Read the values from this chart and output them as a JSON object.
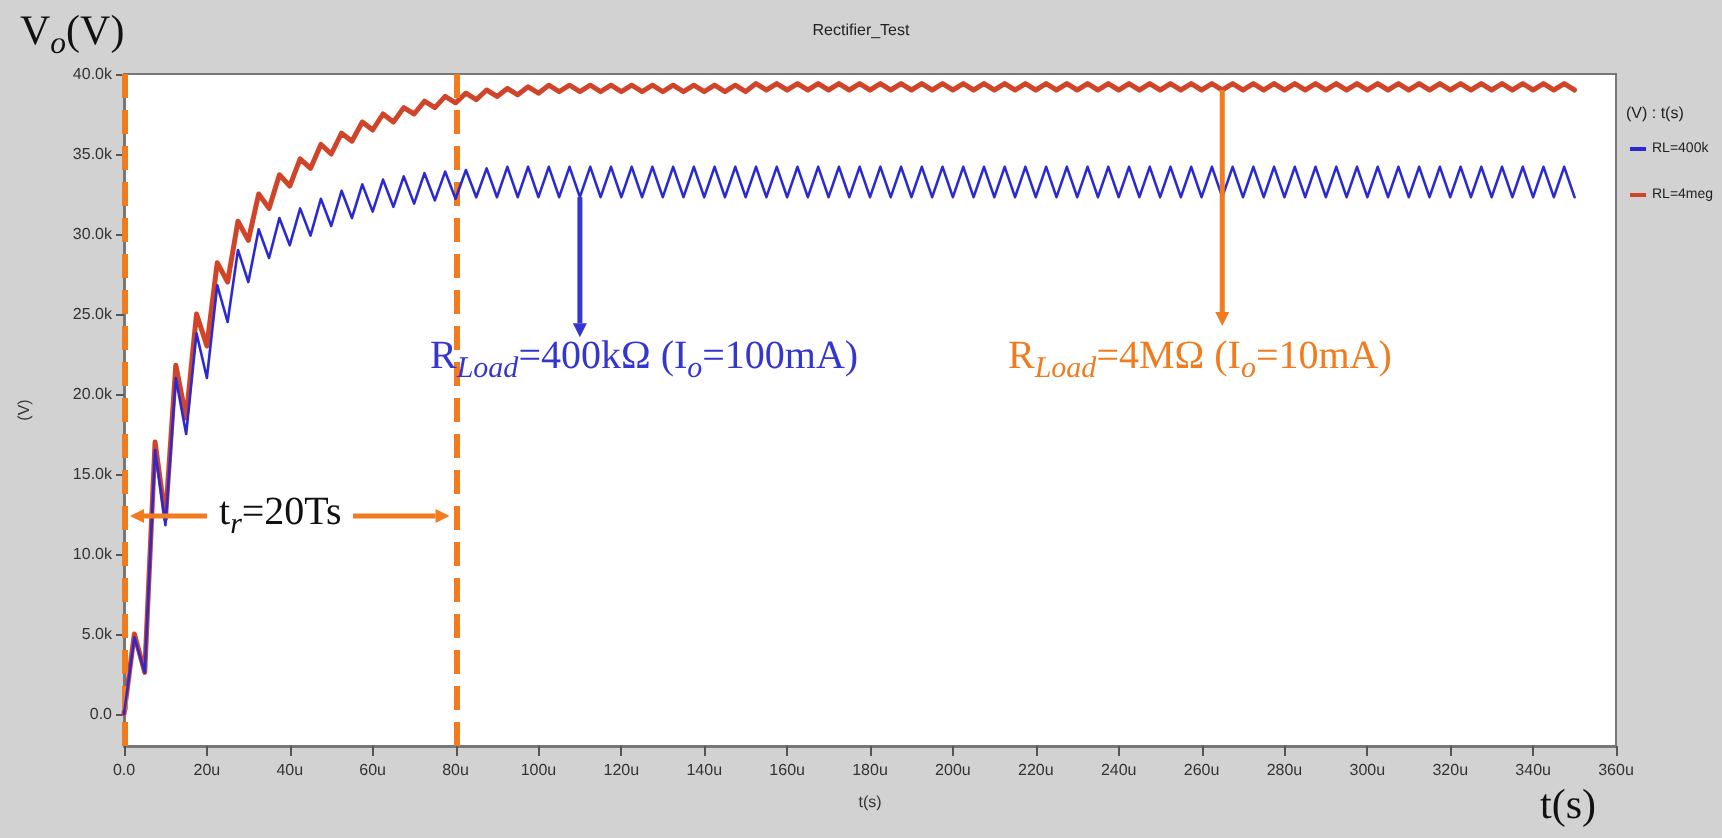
{
  "chart_data": {
    "type": "line",
    "title": "Rectifier_Test",
    "xlabel": "t(s)",
    "ylabel": "(V)",
    "legend_title": "(V) : t(s)",
    "legend": "right",
    "grid": false,
    "marker": "none",
    "line_style": "solid",
    "xlim": [
      0,
      360
    ],
    "ylim": [
      -2000,
      40000
    ],
    "xticks": [
      {
        "value": 0,
        "label": "0.0"
      },
      {
        "value": 20,
        "label": "20u"
      },
      {
        "value": 40,
        "label": "40u"
      },
      {
        "value": 60,
        "label": "60u"
      },
      {
        "value": 80,
        "label": "80u"
      },
      {
        "value": 100,
        "label": "100u"
      },
      {
        "value": 120,
        "label": "120u"
      },
      {
        "value": 140,
        "label": "140u"
      },
      {
        "value": 160,
        "label": "160u"
      },
      {
        "value": 180,
        "label": "180u"
      },
      {
        "value": 200,
        "label": "200u"
      },
      {
        "value": 220,
        "label": "220u"
      },
      {
        "value": 240,
        "label": "240u"
      },
      {
        "value": 260,
        "label": "260u"
      },
      {
        "value": 280,
        "label": "280u"
      },
      {
        "value": 300,
        "label": "300u"
      },
      {
        "value": 320,
        "label": "320u"
      },
      {
        "value": 340,
        "label": "340u"
      },
      {
        "value": 360,
        "label": "360u"
      }
    ],
    "yticks": [
      {
        "value": 0,
        "label": "0.0"
      },
      {
        "value": 5000,
        "label": "5.0k"
      },
      {
        "value": 10000,
        "label": "10.0k"
      },
      {
        "value": 15000,
        "label": "15.0k"
      },
      {
        "value": 20000,
        "label": "20.0k"
      },
      {
        "value": 25000,
        "label": "25.0k"
      },
      {
        "value": 30000,
        "label": "30.0k"
      },
      {
        "value": 35000,
        "label": "35.0k"
      },
      {
        "value": 40000,
        "label": "40.0k"
      }
    ],
    "x": [
      0,
      2.5,
      5,
      7.5,
      10,
      12.5,
      15,
      17.5,
      20,
      22.5,
      25,
      27.5,
      30,
      32.5,
      35,
      37.5,
      40,
      42.5,
      45,
      47.5,
      50,
      52.5,
      55,
      57.5,
      60,
      62.5,
      65,
      67.5,
      70,
      72.5,
      75,
      77.5,
      80,
      82.5,
      85,
      87.5,
      90,
      92.5,
      95,
      97.5,
      100,
      102.5,
      105,
      107.5,
      110,
      112.5,
      115,
      117.5,
      120,
      122.5,
      125,
      127.5,
      130,
      132.5,
      135,
      137.5,
      140,
      142.5,
      145,
      147.5,
      150,
      152.5,
      155,
      157.5,
      160,
      162.5,
      165,
      167.5,
      170,
      172.5,
      175,
      177.5,
      180,
      182.5,
      185,
      187.5,
      190,
      192.5,
      195,
      197.5,
      200,
      202.5,
      205,
      207.5,
      210,
      212.5,
      215,
      217.5,
      220,
      222.5,
      225,
      227.5,
      230,
      232.5,
      235,
      237.5,
      240,
      242.5,
      245,
      247.5,
      250,
      252.5,
      255,
      257.5,
      260,
      262.5,
      265,
      267.5,
      270,
      272.5,
      275,
      277.5,
      280,
      282.5,
      285,
      287.5,
      290,
      292.5,
      295,
      297.5,
      300,
      302.5,
      305,
      307.5,
      310,
      312.5,
      315,
      317.5,
      320,
      322.5,
      325,
      327.5,
      330,
      332.5,
      335,
      337.5,
      340,
      342.5,
      345,
      347.5,
      350
    ],
    "series": [
      {
        "name": "RL=400k",
        "color": "#2a2ad0",
        "values": [
          0,
          4800,
          2600,
          16500,
          11800,
          21000,
          17500,
          23800,
          21000,
          26800,
          24500,
          29000,
          27000,
          30300,
          28500,
          31000,
          29300,
          31600,
          29900,
          32200,
          30500,
          32700,
          31000,
          33100,
          31400,
          33400,
          31700,
          33600,
          31900,
          33800,
          32100,
          33900,
          32200,
          34000,
          32300,
          34100,
          32300,
          34200,
          32300,
          34200,
          32300,
          34200,
          32300,
          34200,
          32300,
          34200,
          32300,
          34200,
          32300,
          34200,
          32300,
          34200,
          32300,
          34200,
          32300,
          34200,
          32300,
          34200,
          32300,
          34200,
          32300,
          34200,
          32300,
          34200,
          32300,
          34200,
          32300,
          34200,
          32300,
          34200,
          32300,
          34200,
          32300,
          34200,
          32300,
          34200,
          32300,
          34200,
          32300,
          34200,
          32300,
          34200,
          32300,
          34200,
          32300,
          34200,
          32300,
          34200,
          32300,
          34200,
          32300,
          34200,
          32300,
          34200,
          32300,
          34200,
          32300,
          34200,
          32300,
          34200,
          32300,
          34200,
          32300,
          34200,
          32300,
          34200,
          32300,
          34200,
          32300,
          34200,
          32300,
          34200,
          32300,
          34200,
          32300,
          34200,
          32300,
          34200,
          32300,
          34200,
          32300,
          34200,
          32300,
          34200,
          32300,
          34200,
          32300,
          34200,
          32300,
          34200,
          32300,
          34200,
          32300,
          34200,
          32300,
          34200,
          32300,
          34200,
          32300,
          34200,
          32300
        ]
      },
      {
        "name": "RL=4meg",
        "color": "#d0442a",
        "values": [
          0,
          5000,
          2600,
          17000,
          12200,
          21800,
          18500,
          25000,
          23000,
          28200,
          27000,
          30800,
          29600,
          32500,
          31600,
          33700,
          33000,
          34700,
          34100,
          35600,
          35000,
          36300,
          35800,
          37000,
          36500,
          37500,
          37000,
          37900,
          37500,
          38300,
          37900,
          38600,
          38200,
          38800,
          38400,
          39000,
          38600,
          39100,
          38700,
          39200,
          38800,
          39300,
          38900,
          39300,
          38900,
          39300,
          38900,
          39300,
          38900,
          39300,
          38900,
          39300,
          38900,
          39300,
          38900,
          39300,
          38900,
          39300,
          38900,
          39300,
          38900,
          39400,
          39000,
          39400,
          39000,
          39400,
          39000,
          39400,
          39000,
          39400,
          39000,
          39400,
          39000,
          39400,
          39000,
          39400,
          39000,
          39400,
          39000,
          39400,
          39000,
          39400,
          39000,
          39400,
          39000,
          39400,
          39000,
          39400,
          39000,
          39400,
          39000,
          39400,
          39000,
          39400,
          39000,
          39400,
          39000,
          39400,
          39000,
          39400,
          39000,
          39400,
          39000,
          39400,
          39000,
          39400,
          39000,
          39400,
          39000,
          39400,
          39000,
          39400,
          39000,
          39400,
          39000,
          39400,
          39000,
          39400,
          39000,
          39400,
          39000,
          39400,
          39000,
          39400,
          39000,
          39400,
          39000,
          39400,
          39000,
          39400,
          39000,
          39400,
          39000,
          39400,
          39000,
          39400,
          39000,
          39400,
          39000,
          39400,
          39000
        ]
      }
    ],
    "ref_lines": [
      {
        "axis": "x",
        "value": 0,
        "color": "#f07c1f",
        "line_style": "dashed"
      },
      {
        "axis": "x",
        "value": 80,
        "color": "#f07c1f",
        "line_style": "dashed"
      }
    ],
    "annotations": [
      "V$_{o}$(V)",
      "t(s)",
      "t$_{r}$=20Ts",
      {
        "text": "R$_{Load}$=400kΩ (I$_{o}$=100mA)",
        "x": 110,
        "y": 32300
      },
      {
        "text": "R$_{Load}$=4MΩ (I$_{o}$=10mA)",
        "x": 265,
        "y": 39000
      }
    ]
  }
}
